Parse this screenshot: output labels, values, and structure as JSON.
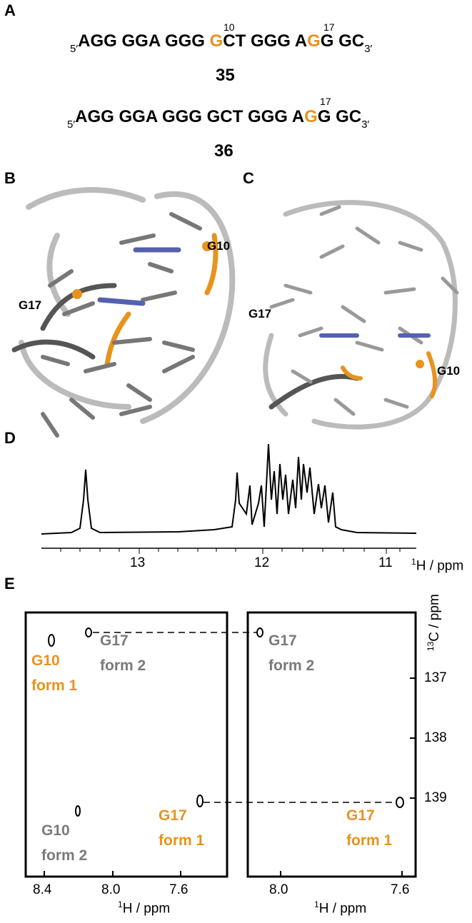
{
  "panel_a": {
    "label": "A",
    "seq35": {
      "five": "5′",
      "segments": [
        "AGG GGA GGG ",
        "G",
        "CT GGG A",
        "G",
        "G GC"
      ],
      "three": "3′",
      "marks": [
        "10",
        "17"
      ],
      "name": "35"
    },
    "seq36": {
      "five": "5′",
      "segments": [
        "AGG GGA GGG GCT GGG A",
        "G",
        "G GC"
      ],
      "three": "3′",
      "marks": [
        "17"
      ],
      "name": "36"
    }
  },
  "panel_b": {
    "label": "B",
    "residues": [
      "G10",
      "G17"
    ]
  },
  "panel_c": {
    "label": "C",
    "residues": [
      "G17",
      "G10"
    ]
  },
  "panel_d": {
    "label": "D",
    "xticks": [
      "13",
      "12",
      "11"
    ],
    "xlabel_sup": "1",
    "xlabel": "H / ppm"
  },
  "panel_e": {
    "label": "E",
    "left": {
      "xticks": [
        "8.4",
        "8.0",
        "7.6"
      ],
      "xlabel_sup": "1",
      "xlabel": "H / ppm",
      "peaks": [
        [
          "G10",
          "form 1"
        ],
        [
          "G17",
          "form 2"
        ],
        [
          "G10",
          "form 2"
        ],
        [
          "G17",
          "form 1"
        ]
      ]
    },
    "right": {
      "xticks": [
        "8.0",
        "7.6"
      ],
      "xlabel_sup": "1",
      "xlabel": "H / ppm",
      "yticks": [
        "137",
        "138",
        "139"
      ],
      "ylabel_sup": "13",
      "ylabel": "C / ppm",
      "peaks": [
        [
          "G17",
          "form 2"
        ],
        [
          "G17",
          "form 1"
        ]
      ]
    }
  }
}
